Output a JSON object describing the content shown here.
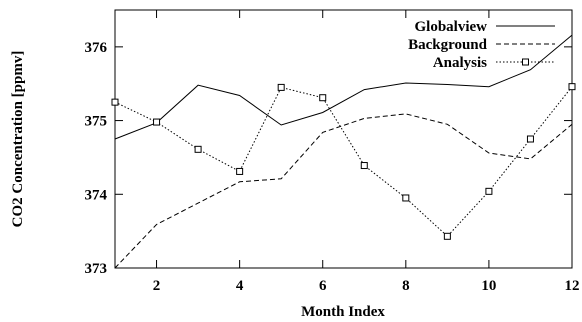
{
  "chart_data": {
    "type": "line",
    "title": "",
    "xlabel": "Month Index",
    "ylabel": "CO2 Concentration [ppmv]",
    "xlim": [
      1,
      12
    ],
    "ylim": [
      373,
      376.5
    ],
    "x_ticks": [
      2,
      4,
      6,
      8,
      10,
      12
    ],
    "y_ticks": [
      373,
      374,
      375,
      376
    ],
    "grid": false,
    "legend_position": "top-right",
    "x": [
      1,
      2,
      3,
      4,
      5,
      6,
      7,
      8,
      9,
      10,
      11,
      12
    ],
    "series": [
      {
        "name": "Globalview",
        "style": "solid",
        "marker": "none",
        "values": [
          374.75,
          374.97,
          375.48,
          375.34,
          374.94,
          375.11,
          375.42,
          375.51,
          375.49,
          375.46,
          375.69,
          376.16
        ]
      },
      {
        "name": "Background",
        "style": "dashed",
        "marker": "none",
        "values": [
          373.0,
          373.59,
          373.88,
          374.17,
          374.21,
          374.84,
          375.03,
          375.09,
          374.95,
          374.56,
          374.48,
          374.95
        ]
      },
      {
        "name": "Analysis",
        "style": "dotted",
        "marker": "square",
        "values": [
          375.25,
          374.98,
          374.61,
          374.31,
          375.45,
          375.31,
          374.39,
          373.95,
          373.43,
          374.04,
          374.75,
          375.46
        ]
      }
    ]
  }
}
